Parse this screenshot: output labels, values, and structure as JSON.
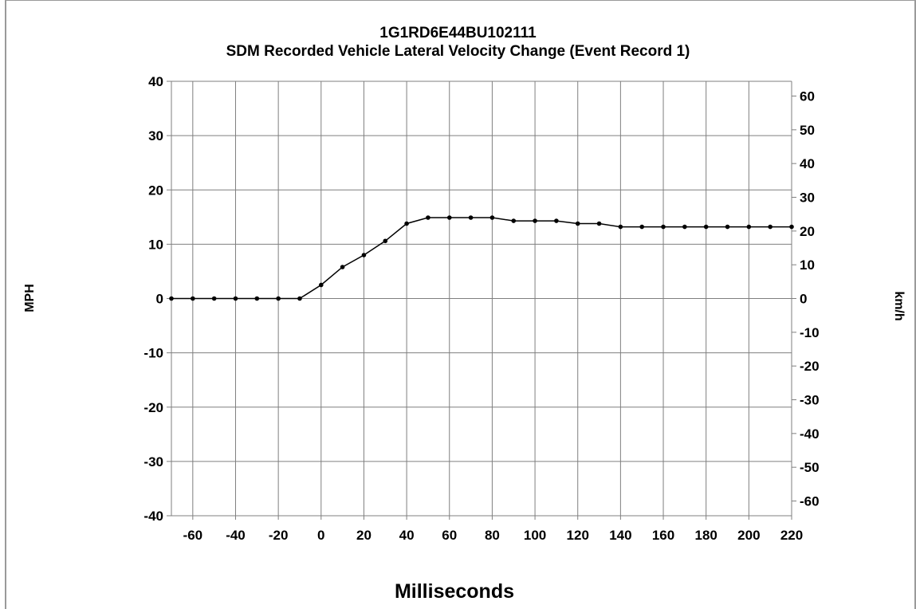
{
  "chart_data": {
    "type": "line",
    "title": "1G1RD6E44BU102111",
    "subtitle": "SDM Recorded Vehicle Lateral Velocity Change (Event Record 1)",
    "xlabel": "Milliseconds",
    "ylabel": "MPH",
    "y2label": "km/h",
    "xlim": [
      -70,
      220
    ],
    "ylim": [
      -40,
      40
    ],
    "y2lim": [
      -64.37,
      64.37
    ],
    "x_ticks": [
      -60,
      -40,
      -20,
      0,
      20,
      40,
      60,
      80,
      100,
      120,
      140,
      160,
      180,
      200,
      220
    ],
    "x_gridlines": [
      -60,
      -40,
      -20,
      0,
      20,
      40,
      60,
      80,
      100,
      120,
      140,
      160,
      180,
      200
    ],
    "y_ticks": [
      40,
      30,
      20,
      10,
      0,
      -10,
      -20,
      -30,
      -40
    ],
    "y2_ticks": [
      60,
      50,
      40,
      30,
      20,
      10,
      0,
      -10,
      -20,
      -30,
      -40,
      -50,
      -60
    ],
    "grid": true,
    "legend": "none",
    "series": [
      {
        "x": [
          -70,
          -60,
          -50,
          -40,
          -30,
          -20,
          -10,
          0,
          10,
          20,
          30,
          40,
          50,
          60,
          70,
          80,
          90,
          100,
          110,
          120,
          130,
          140,
          150,
          160,
          170,
          180,
          190,
          200,
          210,
          220
        ],
        "y": [
          0,
          0,
          0,
          0,
          0,
          0,
          0,
          2.5,
          5.8,
          8.0,
          10.6,
          13.8,
          14.9,
          14.9,
          14.9,
          14.9,
          14.3,
          14.3,
          14.3,
          13.8,
          13.8,
          13.2,
          13.2,
          13.2,
          13.2,
          13.2,
          13.2,
          13.2,
          13.2,
          13.2
        ]
      }
    ],
    "colors": {
      "line": "#000000",
      "grid": "#7f7f7f",
      "axis": "#7f7f7f"
    }
  }
}
